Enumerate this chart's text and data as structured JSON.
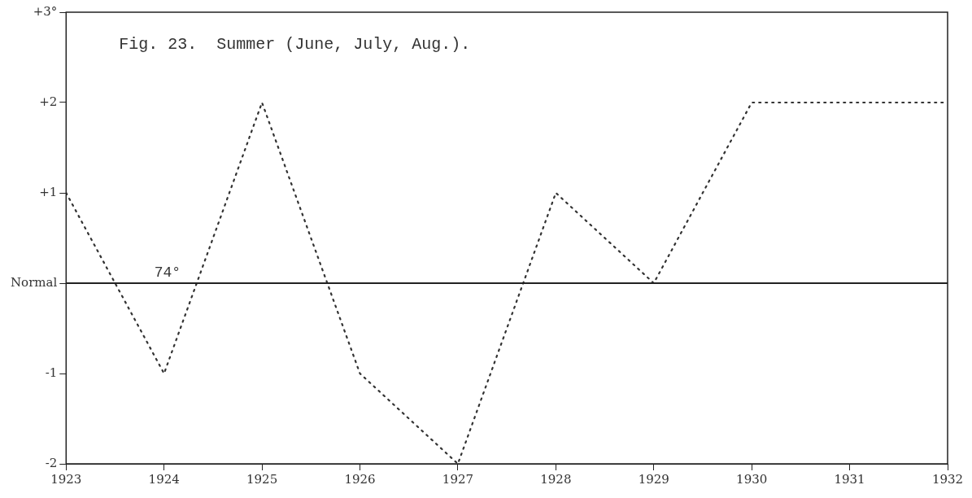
{
  "chart_data": {
    "type": "line",
    "title": "Fig. 23.  Summer (June, July, Aug.).",
    "x": [
      1923,
      1924,
      1925,
      1926,
      1927,
      1928,
      1929,
      1930,
      1931,
      1932
    ],
    "series": [
      {
        "color": "#333333",
        "values": [
          1,
          -1,
          2,
          -1,
          -2,
          1,
          0,
          2,
          2,
          2
        ]
      }
    ],
    "xlim": [
      1923,
      1932
    ],
    "xticks": [
      1923,
      1924,
      1925,
      1926,
      1927,
      1928,
      1929,
      1930,
      1931,
      1932
    ],
    "ylim": [
      -2,
      3
    ],
    "yticks": [
      {
        "value": -2,
        "label": "-2"
      },
      {
        "value": -1,
        "label": "-1"
      },
      {
        "value": 0,
        "label": "Normal"
      },
      {
        "value": 1,
        "label": "+1"
      },
      {
        "value": 2,
        "label": "+2"
      },
      {
        "value": 3,
        "label": "+3°"
      }
    ],
    "ref_lines": [
      {
        "axis": "y",
        "value": 0,
        "color": "#222222",
        "line_style": "solid"
      }
    ],
    "annotations": [
      "74°"
    ],
    "grid": false,
    "legend": false,
    "marker": "none",
    "line_style": "dotted"
  }
}
